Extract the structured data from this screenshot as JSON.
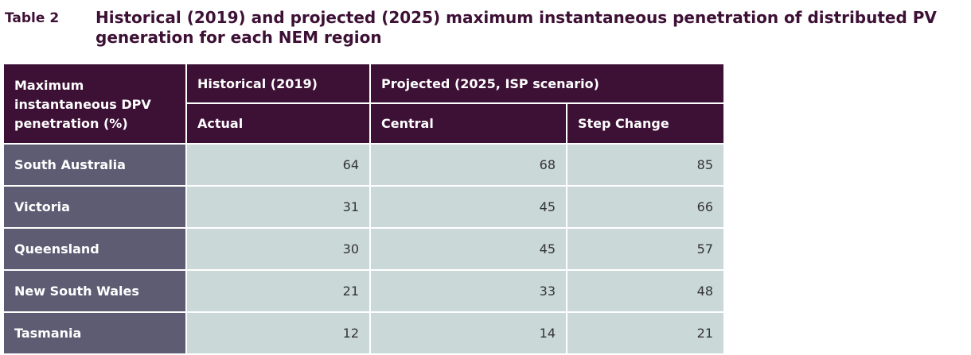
{
  "caption": {
    "label": "Table 2",
    "title": "Historical (2019) and projected (2025) maximum instantaneous penetration of distributed PV generation for each NEM region"
  },
  "table": {
    "row_header": "Maximum instantaneous DPV penetration (%)",
    "group_historical": "Historical (2019)",
    "group_projected": "Projected (2025, ISP scenario)",
    "col_actual": "Actual",
    "col_central": "Central",
    "col_step_change": "Step Change",
    "rows": [
      {
        "region": "South Australia",
        "actual": "64",
        "central": "68",
        "step_change": "85"
      },
      {
        "region": "Victoria",
        "actual": "31",
        "central": "45",
        "step_change": "66"
      },
      {
        "region": "Queensland",
        "actual": "30",
        "central": "45",
        "step_change": "57"
      },
      {
        "region": "New South Wales",
        "actual": "21",
        "central": "33",
        "step_change": "48"
      },
      {
        "region": "Tasmania",
        "actual": "12",
        "central": "14",
        "step_change": "21"
      }
    ]
  }
}
